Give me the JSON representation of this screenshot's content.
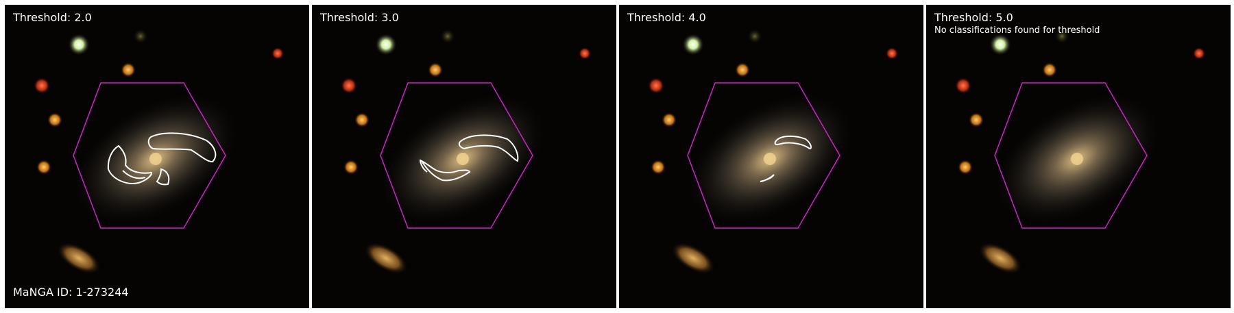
{
  "manga_id_label": "MaNGA ID: 1-273244",
  "colors": {
    "hexagon": "#cc22cc",
    "contour": "#ffffff",
    "sky": "#060403"
  },
  "panels": [
    {
      "threshold_label": "Threshold: 2.0",
      "note": "",
      "contours": "large"
    },
    {
      "threshold_label": "Threshold: 3.0",
      "note": "",
      "contours": "medium"
    },
    {
      "threshold_label": "Threshold: 4.0",
      "note": "",
      "contours": "small"
    },
    {
      "threshold_label": "Threshold: 5.0",
      "note": "No classifications found for threshold",
      "contours": "none"
    }
  ]
}
